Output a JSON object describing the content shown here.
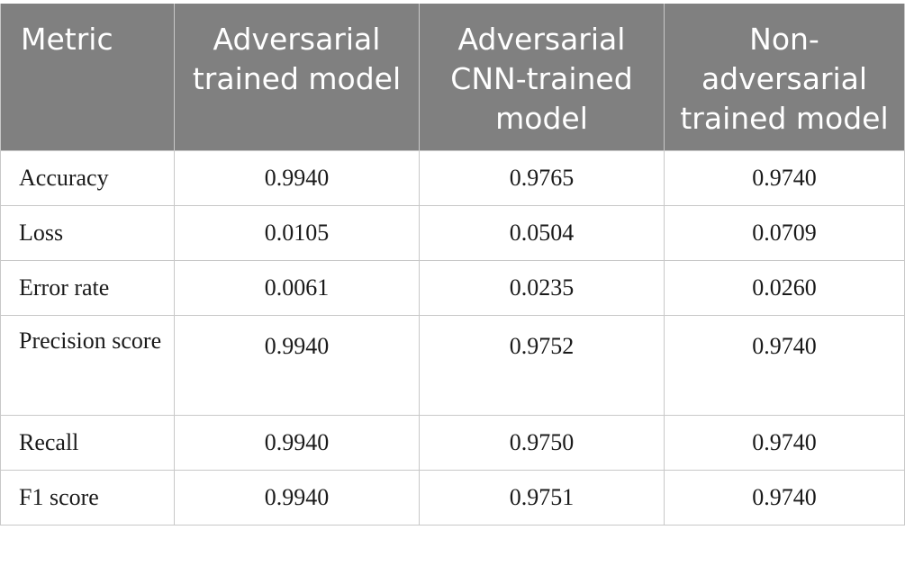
{
  "table": {
    "headers": [
      "Metric",
      "Adversarial trained model",
      "Adversarial CNN-trained model",
      "Non-adversarial trained model"
    ],
    "rows": [
      {
        "metric": "Accuracy",
        "values": [
          "0.9940",
          "0.9765",
          "0.9740"
        ]
      },
      {
        "metric": "Loss",
        "values": [
          "0.0105",
          "0.0504",
          "0.0709"
        ]
      },
      {
        "metric": "Error rate",
        "values": [
          "0.0061",
          "0.0235",
          "0.0260"
        ]
      },
      {
        "metric": "Precision score",
        "values": [
          "0.9940",
          "0.9752",
          "0.9740"
        ]
      },
      {
        "metric": "Recall",
        "values": [
          "0.9940",
          "0.9750",
          "0.9740"
        ]
      },
      {
        "metric": "F1 score",
        "values": [
          "0.9940",
          "0.9751",
          "0.9740"
        ]
      }
    ]
  },
  "colors": {
    "header_background": "#808080",
    "header_text": "#ffffff",
    "border": "#c8c8c8"
  }
}
